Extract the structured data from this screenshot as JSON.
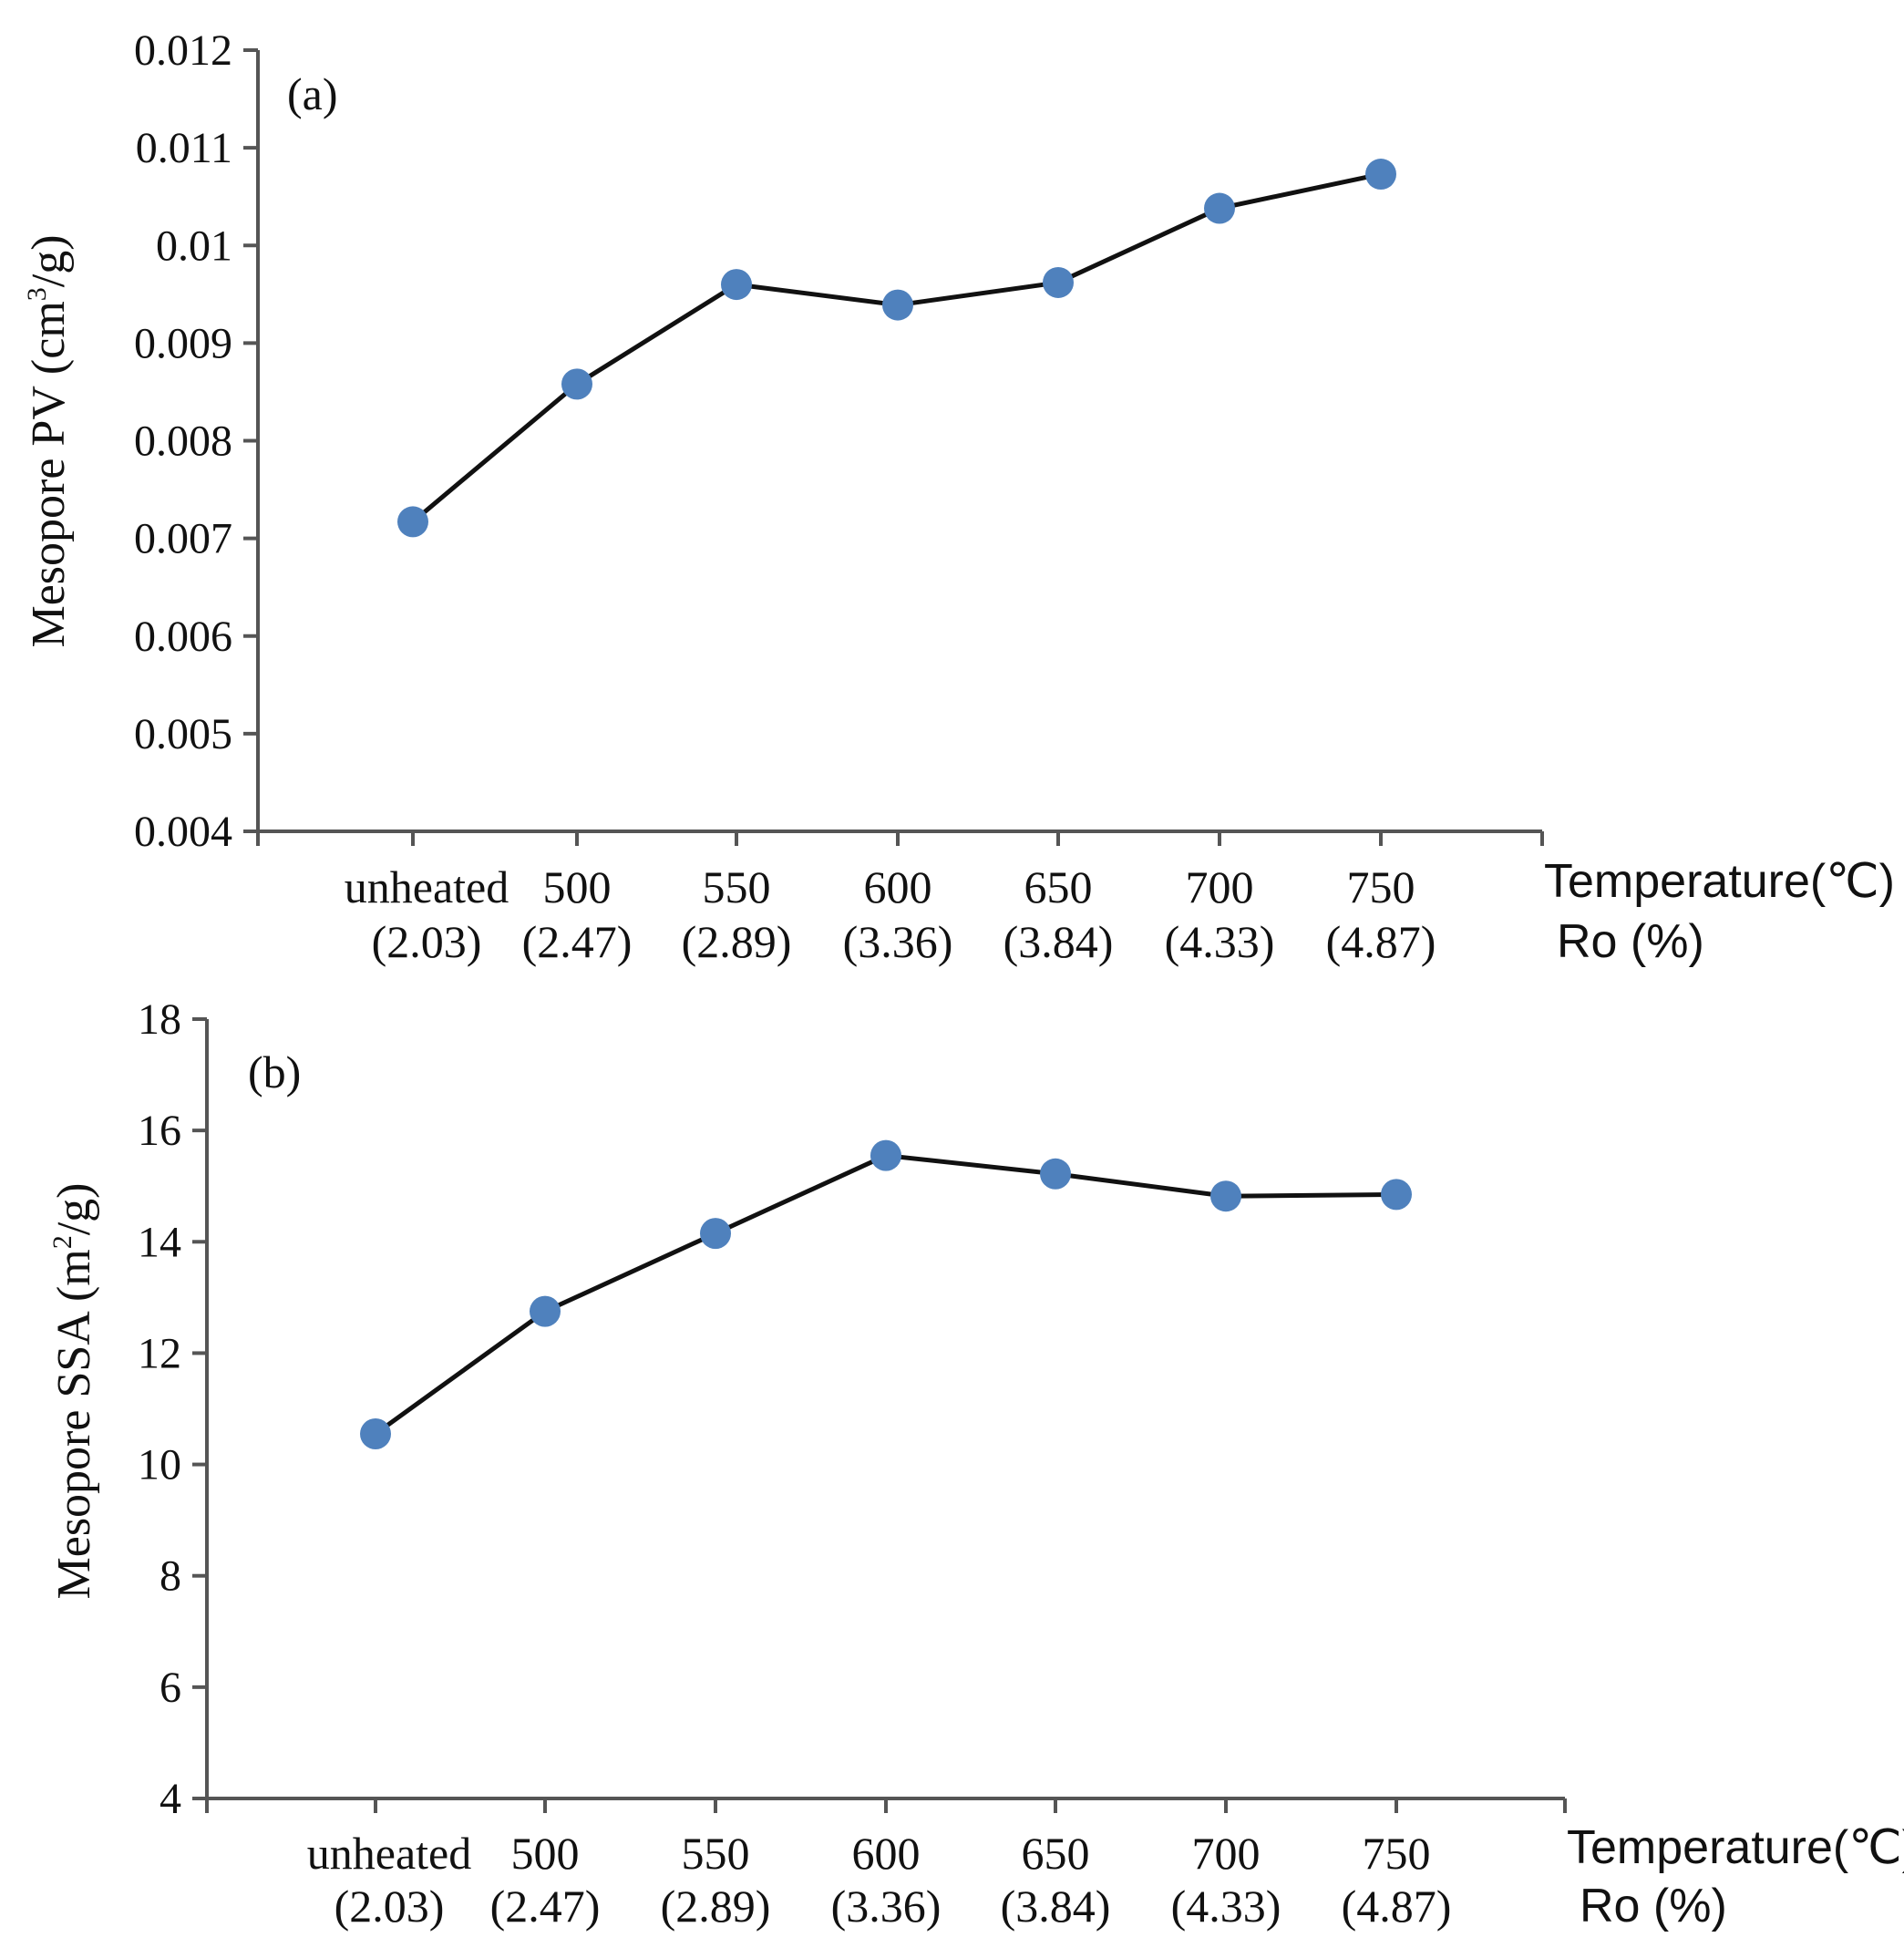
{
  "colors": {
    "marker": "#4f81bd",
    "line": "#111111",
    "axis": "#555555"
  },
  "chart_data": [
    {
      "type": "line",
      "panel": "(a)",
      "title": "",
      "ylabel_main": "Mesopore PV (cm",
      "ylabel_sup": "3",
      "ylabel_end": "/g)",
      "xlabel": "Temperature(℃)",
      "x2label": "Ro (%)",
      "categories": [
        "unheated",
        "500",
        "550",
        "600",
        "650",
        "700",
        "750"
      ],
      "ro_values": [
        "(2.03)",
        "(2.47)",
        "(2.89)",
        "(3.36)",
        "(3.84)",
        "(4.33)",
        "(4.87)"
      ],
      "values": [
        0.00717,
        0.00858,
        0.0096,
        0.00939,
        0.00962,
        0.01038,
        0.01073
      ],
      "ylim": [
        0.004,
        0.012
      ],
      "yticks": [
        "0.004",
        "0.005",
        "0.006",
        "0.007",
        "0.008",
        "0.009",
        "0.01",
        "0.011",
        "0.012"
      ]
    },
    {
      "type": "line",
      "panel": "(b)",
      "title": "",
      "ylabel_main": "Mesopore SSA (m",
      "ylabel_sup": "2",
      "ylabel_end": "/g)",
      "xlabel": "Temperature(℃)",
      "x2label": "Ro (%)",
      "categories": [
        "unheated",
        "500",
        "550",
        "600",
        "650",
        "700",
        "750"
      ],
      "ro_values": [
        "(2.03)",
        "(2.47)",
        "(2.89)",
        "(3.36)",
        "(3.84)",
        "(4.33)",
        "(4.87)"
      ],
      "values": [
        10.55,
        12.75,
        14.15,
        15.55,
        15.22,
        14.82,
        14.85
      ],
      "ylim": [
        4,
        18
      ],
      "yticks": [
        "4",
        "6",
        "8",
        "10",
        "12",
        "14",
        "16",
        "18"
      ]
    }
  ]
}
